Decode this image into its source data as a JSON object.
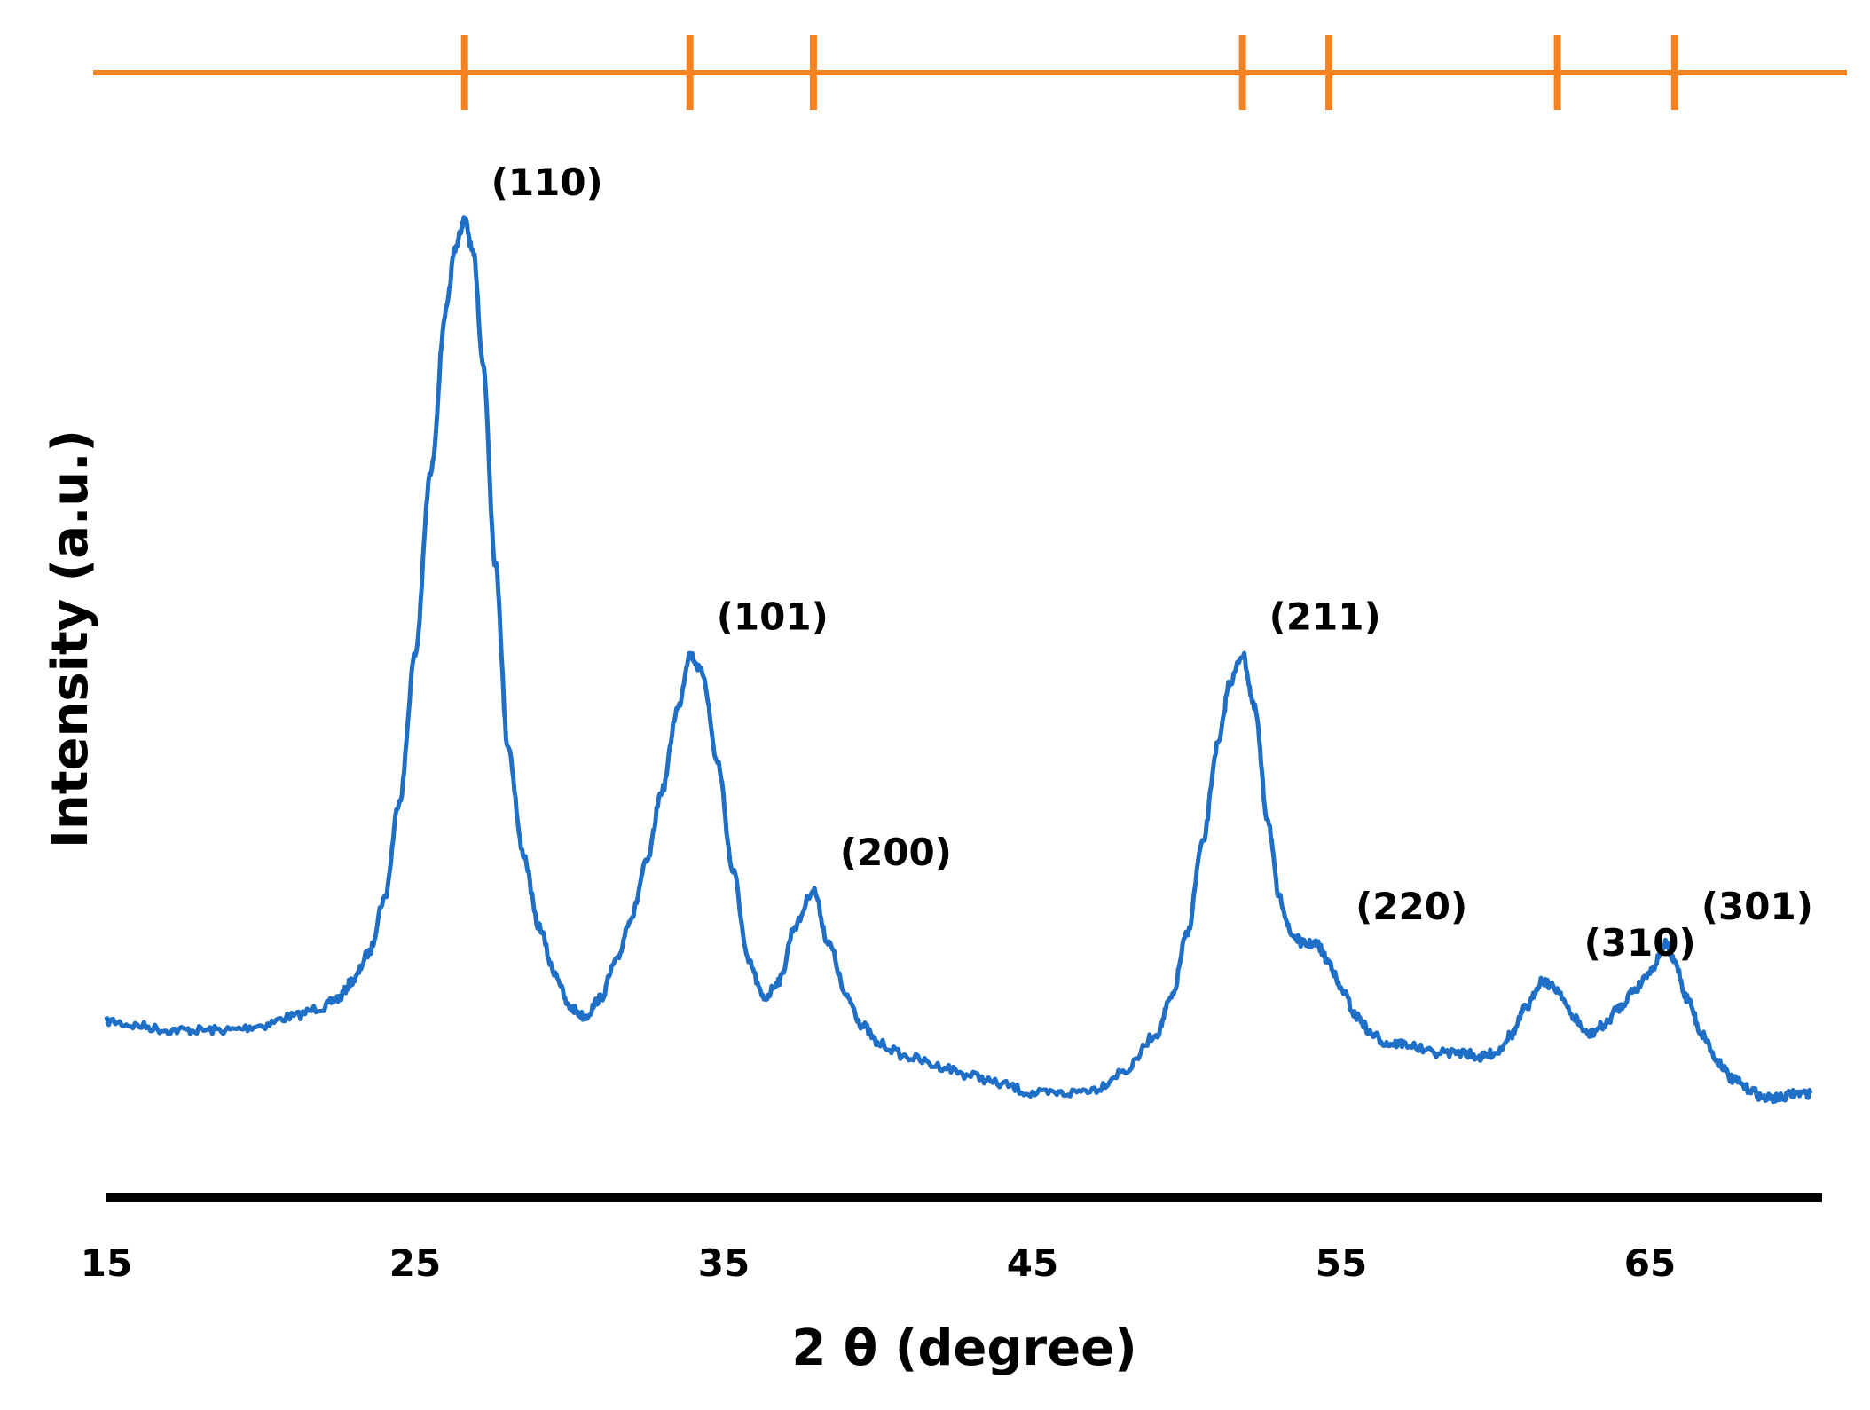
{
  "chart_data": {
    "type": "line",
    "title": "",
    "xlabel": "2 θ (degree)",
    "ylabel": "Intensity (a.u.)",
    "xlim": [
      15,
      70.5
    ],
    "ylim": [
      0,
      100
    ],
    "x_ticks": [
      15,
      25,
      35,
      45,
      55,
      65
    ],
    "y_ticks": [],
    "grid": false,
    "legend": "none",
    "colors": {
      "pattern": "#1f6fc6",
      "reference": "#f58220",
      "axis": "#000000"
    },
    "reference_markers": {
      "positions": [
        26.6,
        33.9,
        37.9,
        51.8,
        54.6,
        62.0,
        65.8
      ]
    },
    "series": [
      {
        "x": [
          15,
          16,
          17,
          18,
          19,
          20,
          21,
          22,
          22.5,
          23,
          23.5,
          24,
          24.5,
          25,
          25.5,
          26,
          26.3,
          26.6,
          26.9,
          27.2,
          27.6,
          28,
          28.5,
          29,
          29.5,
          30,
          30.5,
          31,
          31.5,
          32,
          32.5,
          33,
          33.5,
          33.9,
          34.3,
          34.8,
          35.3,
          35.8,
          36.3,
          36.8,
          37.3,
          37.9,
          38.4,
          39,
          39.5,
          40,
          41,
          42,
          43,
          44,
          45,
          46,
          47,
          48,
          49,
          49.5,
          50,
          50.5,
          51,
          51.4,
          51.8,
          52.2,
          52.6,
          53,
          53.4,
          53.8,
          54.2,
          54.6,
          55,
          55.5,
          56,
          56.5,
          57,
          58,
          59,
          59.5,
          60,
          60.5,
          61,
          61.5,
          62,
          62.5,
          63,
          63.5,
          64,
          64.5,
          65,
          65.5,
          65.8,
          66.2,
          66.7,
          67.2,
          67.7,
          68.2,
          68.7,
          69.2,
          69.7,
          70.2
        ],
        "y": [
          11.5,
          11,
          10.5,
          10.5,
          10.5,
          11,
          12,
          13,
          14,
          16,
          19,
          25,
          36,
          52,
          72,
          90,
          97,
          100,
          96,
          84,
          62,
          42,
          30,
          22,
          17,
          13,
          12,
          14,
          18,
          23,
          29,
          37,
          46,
          52,
          50,
          40,
          28,
          18,
          14,
          16,
          22,
          26,
          20,
          14,
          11,
          9,
          7.5,
          6.5,
          5.5,
          4.5,
          3.5,
          3.5,
          4,
          6,
          10,
          14,
          21,
          31,
          42,
          49,
          52,
          46,
          34,
          25,
          21,
          20,
          20,
          18,
          15,
          12,
          10,
          9,
          9,
          8,
          8,
          7.5,
          8,
          10,
          13,
          16,
          15,
          12,
          10,
          11,
          13,
          15,
          17,
          20,
          18,
          14,
          10,
          7,
          5,
          4,
          3,
          3,
          3.5,
          3.5
        ]
      }
    ],
    "annotations": [
      {
        "text": "(110)",
        "x": 26.6,
        "y": 100
      },
      {
        "text": "(101)",
        "x": 33.9,
        "y": 52
      },
      {
        "text": "(200)",
        "x": 37.9,
        "y": 26
      },
      {
        "text": "(211)",
        "x": 51.8,
        "y": 52
      },
      {
        "text": "(220)",
        "x": 54.6,
        "y": 20
      },
      {
        "text": "(310)",
        "x": 62.0,
        "y": 16
      },
      {
        "text": "(301)",
        "x": 65.8,
        "y": 20
      }
    ]
  }
}
